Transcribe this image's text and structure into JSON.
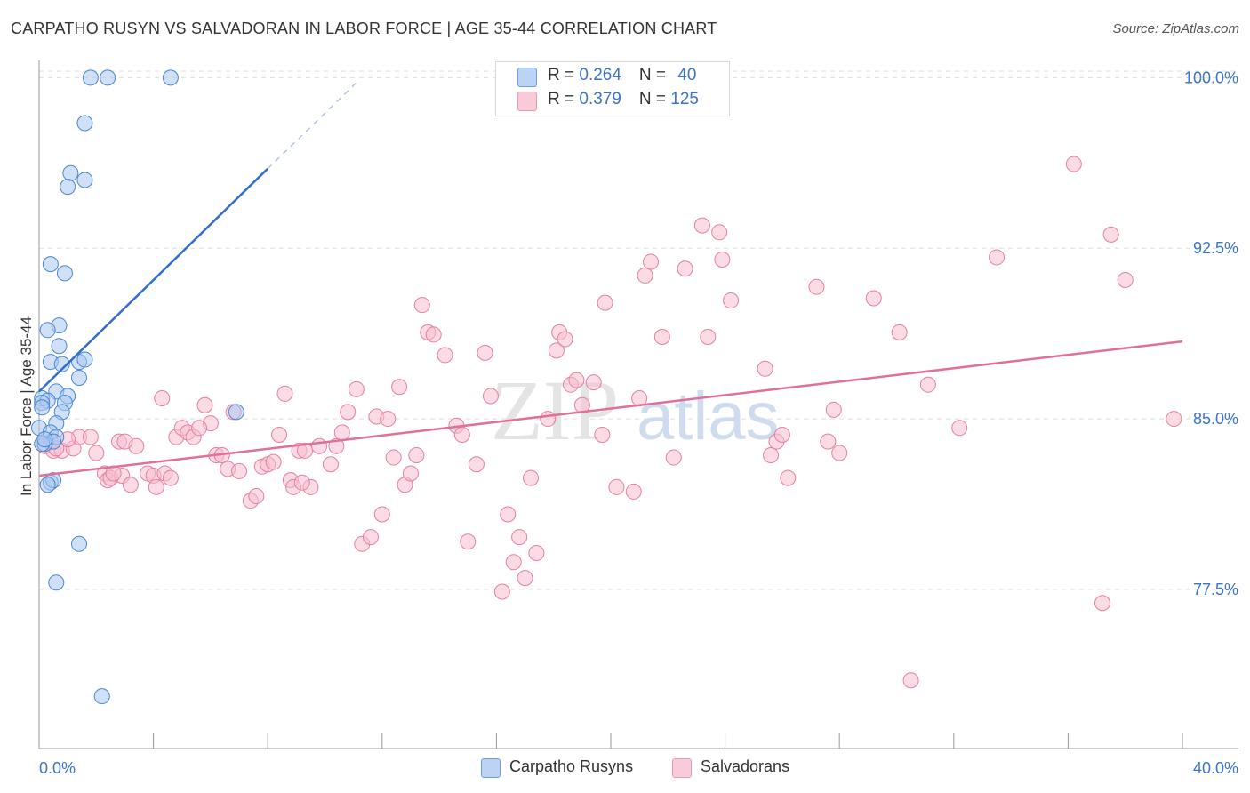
{
  "header": {
    "title": "CARPATHO RUSYN VS SALVADORAN IN LABOR FORCE | AGE 35-44 CORRELATION CHART",
    "source": "Source: ZipAtlas.com"
  },
  "legend": {
    "rows": [
      {
        "r_label": "R = ",
        "r_value": "0.264",
        "n_label": "N = ",
        "n_value": "40"
      },
      {
        "r_label": "R = ",
        "r_value": "0.379",
        "n_label": "N = ",
        "n_value": "125"
      }
    ]
  },
  "bottom_legend": {
    "series1": "Carpatho Rusyns",
    "series2": "Salvadorans"
  },
  "watermark": {
    "zip": "ZIP",
    "atlas": "atlas"
  },
  "colors": {
    "blue_fill": "#a9c8f0",
    "blue_stroke": "#4a86d4",
    "blue_line": "#2f6fcf",
    "pink_fill": "#f7c0d0",
    "pink_stroke": "#e57fa0",
    "pink_line": "#e0709a",
    "axis_label": "#3b74c9",
    "grid": "#dddddd"
  },
  "chart_data": {
    "type": "scatter",
    "title": "CARPATHO RUSYN VS SALVADORAN IN LABOR FORCE | AGE 35-44 CORRELATION CHART",
    "xlabel": "",
    "ylabel": "In Labor Force | Age 35-44",
    "xlim": [
      0,
      40
    ],
    "ylim": [
      70.5,
      100.6
    ],
    "x_tick_labels": [
      "0.0%",
      "40.0%"
    ],
    "y_ticks": [
      77.5,
      85.0,
      92.5,
      100.0
    ],
    "y_tick_labels": [
      "77.5%",
      "85.0%",
      "92.5%",
      "100.0%"
    ],
    "grid": true,
    "legend_position": "top-center",
    "series": [
      {
        "name": "Carpatho Rusyns",
        "R": 0.264,
        "N": 40,
        "trend": {
          "x": [
            0.0,
            8.0
          ],
          "y": [
            86.2,
            96.0
          ],
          "dashed_extension": {
            "x": [
              8.0,
              11.2
            ],
            "y": [
              96.0,
              99.9
            ]
          }
        },
        "points": [
          [
            1.8,
            100.0
          ],
          [
            2.4,
            100.0
          ],
          [
            4.6,
            100.0
          ],
          [
            1.6,
            98.0
          ],
          [
            1.1,
            95.8
          ],
          [
            1.6,
            95.5
          ],
          [
            1.0,
            95.2
          ],
          [
            0.4,
            91.8
          ],
          [
            0.9,
            91.4
          ],
          [
            0.7,
            89.1
          ],
          [
            0.3,
            88.9
          ],
          [
            0.7,
            88.2
          ],
          [
            0.4,
            87.5
          ],
          [
            0.8,
            87.4
          ],
          [
            1.4,
            87.5
          ],
          [
            1.6,
            87.6
          ],
          [
            1.4,
            86.8
          ],
          [
            0.6,
            86.2
          ],
          [
            1.0,
            86.0
          ],
          [
            0.1,
            85.9
          ],
          [
            0.3,
            85.8
          ],
          [
            0.1,
            85.7
          ],
          [
            0.9,
            85.7
          ],
          [
            0.1,
            85.5
          ],
          [
            0.8,
            85.3
          ],
          [
            0.6,
            84.8
          ],
          [
            0.0,
            84.6
          ],
          [
            0.4,
            84.4
          ],
          [
            0.6,
            84.2
          ],
          [
            0.5,
            84.0
          ],
          [
            0.2,
            83.9
          ],
          [
            0.4,
            82.2
          ],
          [
            0.5,
            82.3
          ],
          [
            0.3,
            82.1
          ],
          [
            1.4,
            79.5
          ],
          [
            0.6,
            77.8
          ],
          [
            2.2,
            72.8
          ],
          [
            6.9,
            85.3
          ],
          [
            0.1,
            83.9
          ],
          [
            0.2,
            84.1
          ]
        ]
      },
      {
        "name": "Salvadorans",
        "R": 0.379,
        "N": 125,
        "trend": {
          "x": [
            0.0,
            40.0
          ],
          "y": [
            82.5,
            88.4
          ]
        },
        "points": [
          [
            0.2,
            83.8
          ],
          [
            0.4,
            84.0
          ],
          [
            0.5,
            83.6
          ],
          [
            0.8,
            83.6
          ],
          [
            1.2,
            83.7
          ],
          [
            1.4,
            84.2
          ],
          [
            1.8,
            84.2
          ],
          [
            2.0,
            83.5
          ],
          [
            2.3,
            82.6
          ],
          [
            2.4,
            82.3
          ],
          [
            2.5,
            82.4
          ],
          [
            2.9,
            82.5
          ],
          [
            2.8,
            84.0
          ],
          [
            3.2,
            82.1
          ],
          [
            3.4,
            83.8
          ],
          [
            3.8,
            82.6
          ],
          [
            4.0,
            82.5
          ],
          [
            4.1,
            82.0
          ],
          [
            4.4,
            82.6
          ],
          [
            4.3,
            85.9
          ],
          [
            4.8,
            84.2
          ],
          [
            5.0,
            84.6
          ],
          [
            5.2,
            84.4
          ],
          [
            5.4,
            84.2
          ],
          [
            5.8,
            85.6
          ],
          [
            6.0,
            84.8
          ],
          [
            6.2,
            83.4
          ],
          [
            6.4,
            83.4
          ],
          [
            6.6,
            82.8
          ],
          [
            6.8,
            85.3
          ],
          [
            7.0,
            82.7
          ],
          [
            7.4,
            81.4
          ],
          [
            7.6,
            81.6
          ],
          [
            7.8,
            82.9
          ],
          [
            8.0,
            83.0
          ],
          [
            8.2,
            83.1
          ],
          [
            8.4,
            84.3
          ],
          [
            8.6,
            86.1
          ],
          [
            8.8,
            82.3
          ],
          [
            8.9,
            82.0
          ],
          [
            9.1,
            83.6
          ],
          [
            9.3,
            83.6
          ],
          [
            9.5,
            82.0
          ],
          [
            9.8,
            83.8
          ],
          [
            10.2,
            83.0
          ],
          [
            10.4,
            83.8
          ],
          [
            10.6,
            84.4
          ],
          [
            10.8,
            85.3
          ],
          [
            11.1,
            86.3
          ],
          [
            11.3,
            79.5
          ],
          [
            11.6,
            79.8
          ],
          [
            11.8,
            85.1
          ],
          [
            12.0,
            80.8
          ],
          [
            12.2,
            85.0
          ],
          [
            12.4,
            83.3
          ],
          [
            12.6,
            86.4
          ],
          [
            12.8,
            82.1
          ],
          [
            13.0,
            82.6
          ],
          [
            13.2,
            83.4
          ],
          [
            13.4,
            90.0
          ],
          [
            13.6,
            88.8
          ],
          [
            13.8,
            88.7
          ],
          [
            14.2,
            87.8
          ],
          [
            14.6,
            84.7
          ],
          [
            14.8,
            84.3
          ],
          [
            15.0,
            79.6
          ],
          [
            15.3,
            83.0
          ],
          [
            15.6,
            87.9
          ],
          [
            15.8,
            86.0
          ],
          [
            16.2,
            77.4
          ],
          [
            16.4,
            80.8
          ],
          [
            16.6,
            78.7
          ],
          [
            16.8,
            79.8
          ],
          [
            17.0,
            78.0
          ],
          [
            17.2,
            82.4
          ],
          [
            17.4,
            79.1
          ],
          [
            17.8,
            85.0
          ],
          [
            18.1,
            88.0
          ],
          [
            18.2,
            88.8
          ],
          [
            18.4,
            88.5
          ],
          [
            18.6,
            86.5
          ],
          [
            18.8,
            86.7
          ],
          [
            19.0,
            85.6
          ],
          [
            19.4,
            86.6
          ],
          [
            19.7,
            84.3
          ],
          [
            19.8,
            90.1
          ],
          [
            20.2,
            82.0
          ],
          [
            20.8,
            81.8
          ],
          [
            21.0,
            85.9
          ],
          [
            21.2,
            91.3
          ],
          [
            21.4,
            91.9
          ],
          [
            21.8,
            88.6
          ],
          [
            22.2,
            83.3
          ],
          [
            22.6,
            91.6
          ],
          [
            23.2,
            93.5
          ],
          [
            23.4,
            88.6
          ],
          [
            23.8,
            93.2
          ],
          [
            23.9,
            92.0
          ],
          [
            24.2,
            90.2
          ],
          [
            25.4,
            87.2
          ],
          [
            25.6,
            83.4
          ],
          [
            25.8,
            84.0
          ],
          [
            26.0,
            84.3
          ],
          [
            26.2,
            82.4
          ],
          [
            27.2,
            90.8
          ],
          [
            27.6,
            84.0
          ],
          [
            27.8,
            85.4
          ],
          [
            28.0,
            83.5
          ],
          [
            29.2,
            90.3
          ],
          [
            30.1,
            88.8
          ],
          [
            31.1,
            86.5
          ],
          [
            32.2,
            84.6
          ],
          [
            33.5,
            92.1
          ],
          [
            36.2,
            96.2
          ],
          [
            37.5,
            93.1
          ],
          [
            38.0,
            91.1
          ],
          [
            37.2,
            76.9
          ],
          [
            30.5,
            73.5
          ],
          [
            39.7,
            85.0
          ],
          [
            9.2,
            82.2
          ],
          [
            5.6,
            84.6
          ],
          [
            3.0,
            84.0
          ],
          [
            1.0,
            84.1
          ],
          [
            0.6,
            83.7
          ],
          [
            2.6,
            82.6
          ],
          [
            4.6,
            82.4
          ]
        ]
      }
    ]
  }
}
